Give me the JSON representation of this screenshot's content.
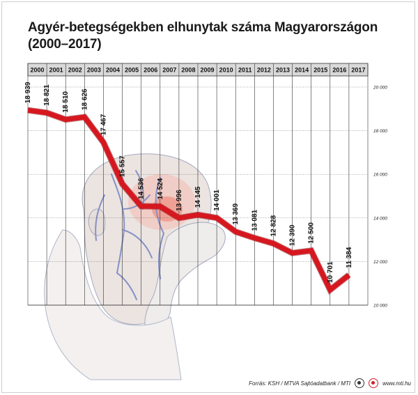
{
  "title": "Agyér-betegségekben elhunytak száma Magyarországon (2000–2017)",
  "footer": {
    "source": "Forrás: KSH / MTVA Sajtóadatbank / MTI",
    "website": "www.mti.hu"
  },
  "colors": {
    "line": "#d7171f",
    "line_dark": "#8e0d12",
    "header_band": "#d9d9d9",
    "grid": "#333333",
    "illustration": "#b5b7c8",
    "vein": "#7a86c0"
  },
  "background_image": "man-with-headache-illustration",
  "chart_data": {
    "type": "line",
    "title": "Agyér-betegségekben elhunytak száma Magyarországon (2000–2017)",
    "x": [
      "2000",
      "2001",
      "2002",
      "2003",
      "2004",
      "2005",
      "2006",
      "2007",
      "2008",
      "2009",
      "2010",
      "2011",
      "2012",
      "2013",
      "2014",
      "2015",
      "2016",
      "2017"
    ],
    "values": [
      18939,
      18821,
      18510,
      18626,
      17467,
      15557,
      14536,
      14524,
      13996,
      14145,
      14001,
      13369,
      13081,
      12828,
      12390,
      12500,
      10701,
      11384
    ],
    "value_labels": [
      "18 939",
      "18 821",
      "18 510",
      "18 626",
      "17 467",
      "15 557",
      "14 536",
      "14 524",
      "13 996",
      "14 145",
      "14 001",
      "13 369",
      "13 081",
      "12 828",
      "12 390",
      "12 500",
      "10 701",
      "11 384"
    ],
    "y_ticks": [
      10000,
      12000,
      14000,
      16000,
      18000,
      20000
    ],
    "y_tick_labels": [
      "10 000",
      "12 000",
      "14 000",
      "16 000",
      "18 000",
      "20 000"
    ],
    "ylim": [
      10000,
      20000
    ],
    "y_axis_position": "right",
    "x_axis_position": "top",
    "grid": true,
    "legend": "none"
  }
}
